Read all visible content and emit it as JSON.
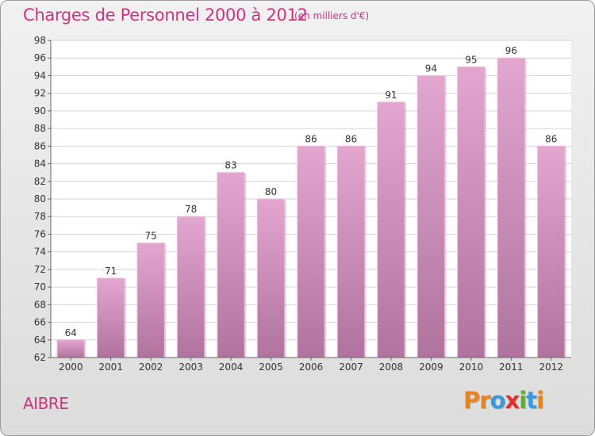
{
  "header": {
    "title": "Charges de Personnel 2000 à 2012",
    "subtitle": "(en milliers d'€)"
  },
  "footer": {
    "commune": "AIBRE",
    "logo_text": "Proxiti",
    "logo_colors": [
      "#e8841a",
      "#e8841a",
      "#3a9ad9",
      "#e03030",
      "#5bb030",
      "#3a9ad9",
      "#e8841a"
    ]
  },
  "chart_data": {
    "type": "bar",
    "title": "Charges de Personnel 2000 à 2012",
    "subtitle": "(en milliers d'€)",
    "categories": [
      "2000",
      "2001",
      "2002",
      "2003",
      "2004",
      "2005",
      "2006",
      "2007",
      "2008",
      "2009",
      "2010",
      "2011",
      "2012"
    ],
    "values": [
      64,
      71,
      75,
      78,
      83,
      80,
      86,
      86,
      91,
      94,
      95,
      96,
      86
    ],
    "ylim": [
      62,
      98
    ],
    "yticks": [
      62,
      64,
      66,
      68,
      70,
      72,
      74,
      76,
      78,
      80,
      82,
      84,
      86,
      88,
      90,
      92,
      94,
      96,
      98
    ],
    "grid": true,
    "legend": "none",
    "bar_color": "#c87fae",
    "label_color": "#333333"
  }
}
